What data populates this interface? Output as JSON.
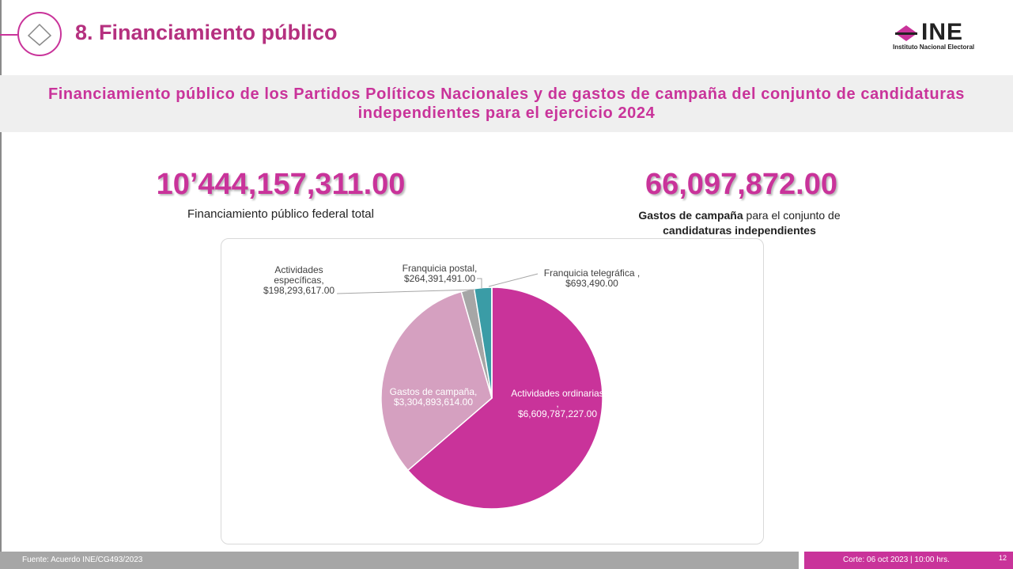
{
  "header": {
    "title": "8. Financiamiento público",
    "logo": "INE",
    "logo_subtitle": "Instituto Nacional Electoral"
  },
  "subtitle": "Financiamiento público de los Partidos Políticos Nacionales y de gastos de campaña del conjunto de candidaturas independientes para el ejercicio 2024",
  "kpis": [
    {
      "value": "10’444,157,311.00",
      "label": "Financiamiento público federal total"
    },
    {
      "value": "66,097,872.00",
      "label_parts": [
        "Gastos de campaña",
        " para el conjunto de ",
        "candidaturas independientes"
      ]
    }
  ],
  "chart_data": {
    "type": "pie",
    "categories": [
      "Actividades ordinarias ,",
      "Gastos de campaña,",
      "Actividades específicas,",
      "Franquicia postal,",
      "Franquicia telegráfica ,"
    ],
    "values": [
      6609787227,
      3304893614,
      198293617,
      264391491,
      693490
    ],
    "value_labels": [
      "$6,609,787,227.00",
      "$3,304,893,614.00",
      "$198,293,617.00",
      "$264,391,491.00",
      "$693,490.00"
    ],
    "colors": [
      "#c9339a",
      "#d5a0c0",
      "#a6a6a6",
      "#3a9ca6",
      "#6d6d6d"
    ]
  },
  "footer": {
    "source": "Fuente: Acuerdo INE/CG493/2023",
    "cutoff": "Corte: 06 oct 2023 | 10:00 hrs.",
    "page": "12"
  }
}
